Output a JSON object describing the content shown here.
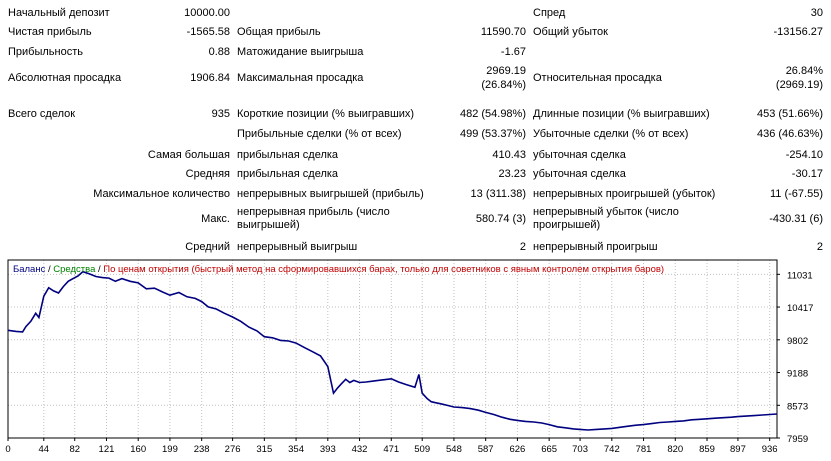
{
  "report": {
    "initial_deposit": {
      "label": "Начальный депозит",
      "value": "10000.00"
    },
    "spread": {
      "label": "Спред",
      "value": "30"
    },
    "net_profit": {
      "label": "Чистая прибыль",
      "value": "-1565.58"
    },
    "gross_profit": {
      "label": "Общая прибыль",
      "value": "11590.70"
    },
    "gross_loss": {
      "label": "Общий убыток",
      "value": "-13156.27"
    },
    "profit_factor": {
      "label": "Прибыльность",
      "value": "0.88"
    },
    "expected_payoff": {
      "label": "Матожидание выигрыша",
      "value": "-1.67"
    },
    "abs_drawdown": {
      "label": "Абсолютная просадка",
      "value": "1906.84"
    },
    "max_drawdown": {
      "label": "Максимальная просадка",
      "value1": "2969.19",
      "value2": "(26.84%)"
    },
    "rel_drawdown": {
      "label": "Относительная просадка",
      "value1": "26.84%",
      "value2": "(2969.19)"
    },
    "total_trades": {
      "label": "Всего сделок",
      "value": "935"
    },
    "short_positions": {
      "label": "Короткие позиции (% выигравших)",
      "value": "482 (54.98%)"
    },
    "long_positions": {
      "label": "Длинные позиции (% выигравших)",
      "value": "453 (51.66%)"
    },
    "profit_trades": {
      "label": "Прибыльные сделки (% от всех)",
      "value": "499 (53.37%)"
    },
    "loss_trades": {
      "label": "Убыточные сделки (% от всех)",
      "value": "436 (46.63%)"
    },
    "largest": {
      "label": "Самая большая",
      "profit_label": "прибыльная сделка",
      "profit_value": "410.43",
      "loss_label": "убыточная сделка",
      "loss_value": "-254.10"
    },
    "average": {
      "label": "Средняя",
      "profit_label": "прибыльная сделка",
      "profit_value": "23.23",
      "loss_label": "убыточная сделка",
      "loss_value": "-30.17"
    },
    "max_consecutive": {
      "label": "Максимальное количество",
      "wins_label": "непрерывных выигрышей (прибыль)",
      "wins_value": "13 (311.38)",
      "losses_label": "непрерывных проигрышей (убыток)",
      "losses_value": "11 (-67.55)"
    },
    "max_consecutive_amount": {
      "label": "Макс.",
      "profit_label_1": "непрерывная прибыль (число",
      "profit_label_2": "выигрышей)",
      "profit_value": "580.74 (3)",
      "loss_label_1": "непрерывный убыток (число",
      "loss_label_2": "проигрышей)",
      "loss_value": "-430.31 (6)"
    },
    "avg_consecutive": {
      "label": "Средний",
      "wins_label": "непрерывный выигрыш",
      "wins_value": "2",
      "losses_label": "непрерывный проигрыш",
      "losses_value": "2"
    }
  },
  "legend": {
    "balance": "Баланс",
    "sep1": " / ",
    "equity": "Средства",
    "sep2": " / ",
    "info": "По ценам открытия (быстрый метод на сформировавшихся барах, только для советников с явным контролем открытия баров)"
  },
  "colors": {
    "balance_line": "#000080",
    "equity": "#008000",
    "info": "#c00000",
    "grid": "#c0c0c0"
  },
  "chart_data": {
    "type": "line",
    "title": "",
    "xlabel": "",
    "ylabel": "",
    "x_ticks": [
      0,
      44,
      82,
      121,
      160,
      199,
      238,
      276,
      315,
      354,
      393,
      432,
      471,
      509,
      548,
      587,
      626,
      665,
      703,
      742,
      781,
      820,
      859,
      897,
      936
    ],
    "y_ticks": [
      11031,
      10417,
      9802,
      9188,
      8573,
      7959
    ],
    "xlim": [
      0,
      945
    ],
    "ylim": [
      7959,
      11300
    ],
    "grid": true,
    "series": [
      {
        "name": "Баланс",
        "x": [
          0,
          10,
          18,
          22,
          28,
          34,
          38,
          44,
          50,
          56,
          62,
          68,
          74,
          80,
          86,
          92,
          100,
          108,
          116,
          124,
          132,
          140,
          150,
          160,
          170,
          180,
          190,
          199,
          210,
          220,
          230,
          238,
          246,
          256,
          266,
          276,
          286,
          296,
          306,
          315,
          325,
          335,
          345,
          354,
          364,
          374,
          384,
          393,
          400,
          405,
          410,
          415,
          420,
          425,
          432,
          440,
          450,
          460,
          471,
          480,
          490,
          500,
          505,
          509,
          515,
          520,
          526,
          532,
          540,
          548,
          558,
          568,
          578,
          587,
          597,
          607,
          617,
          626,
          636,
          646,
          656,
          665,
          675,
          685,
          695,
          703,
          713,
          723,
          733,
          742,
          752,
          762,
          772,
          781,
          791,
          801,
          811,
          820,
          830,
          840,
          850,
          859,
          869,
          879,
          889,
          897,
          907,
          917,
          927,
          936,
          945
        ],
        "y": [
          9980,
          9960,
          9950,
          10050,
          10150,
          10300,
          10220,
          10620,
          10780,
          10720,
          10680,
          10800,
          10900,
          10950,
          11000,
          11080,
          11040,
          10990,
          10970,
          10960,
          10900,
          10950,
          10900,
          10870,
          10760,
          10770,
          10700,
          10640,
          10690,
          10610,
          10580,
          10520,
          10420,
          10380,
          10300,
          10230,
          10150,
          10040,
          9970,
          9860,
          9840,
          9790,
          9780,
          9740,
          9660,
          9580,
          9500,
          9300,
          8800,
          8900,
          8980,
          9060,
          9000,
          9040,
          9000,
          9010,
          9030,
          9050,
          9070,
          9010,
          8960,
          8910,
          9150,
          8800,
          8700,
          8640,
          8620,
          8600,
          8570,
          8540,
          8530,
          8510,
          8480,
          8440,
          8400,
          8350,
          8310,
          8290,
          8270,
          8260,
          8240,
          8210,
          8170,
          8150,
          8130,
          8120,
          8110,
          8120,
          8130,
          8140,
          8160,
          8180,
          8200,
          8210,
          8230,
          8250,
          8260,
          8270,
          8280,
          8300,
          8310,
          8320,
          8330,
          8340,
          8350,
          8360,
          8370,
          8380,
          8390,
          8400,
          8410
        ]
      }
    ]
  }
}
